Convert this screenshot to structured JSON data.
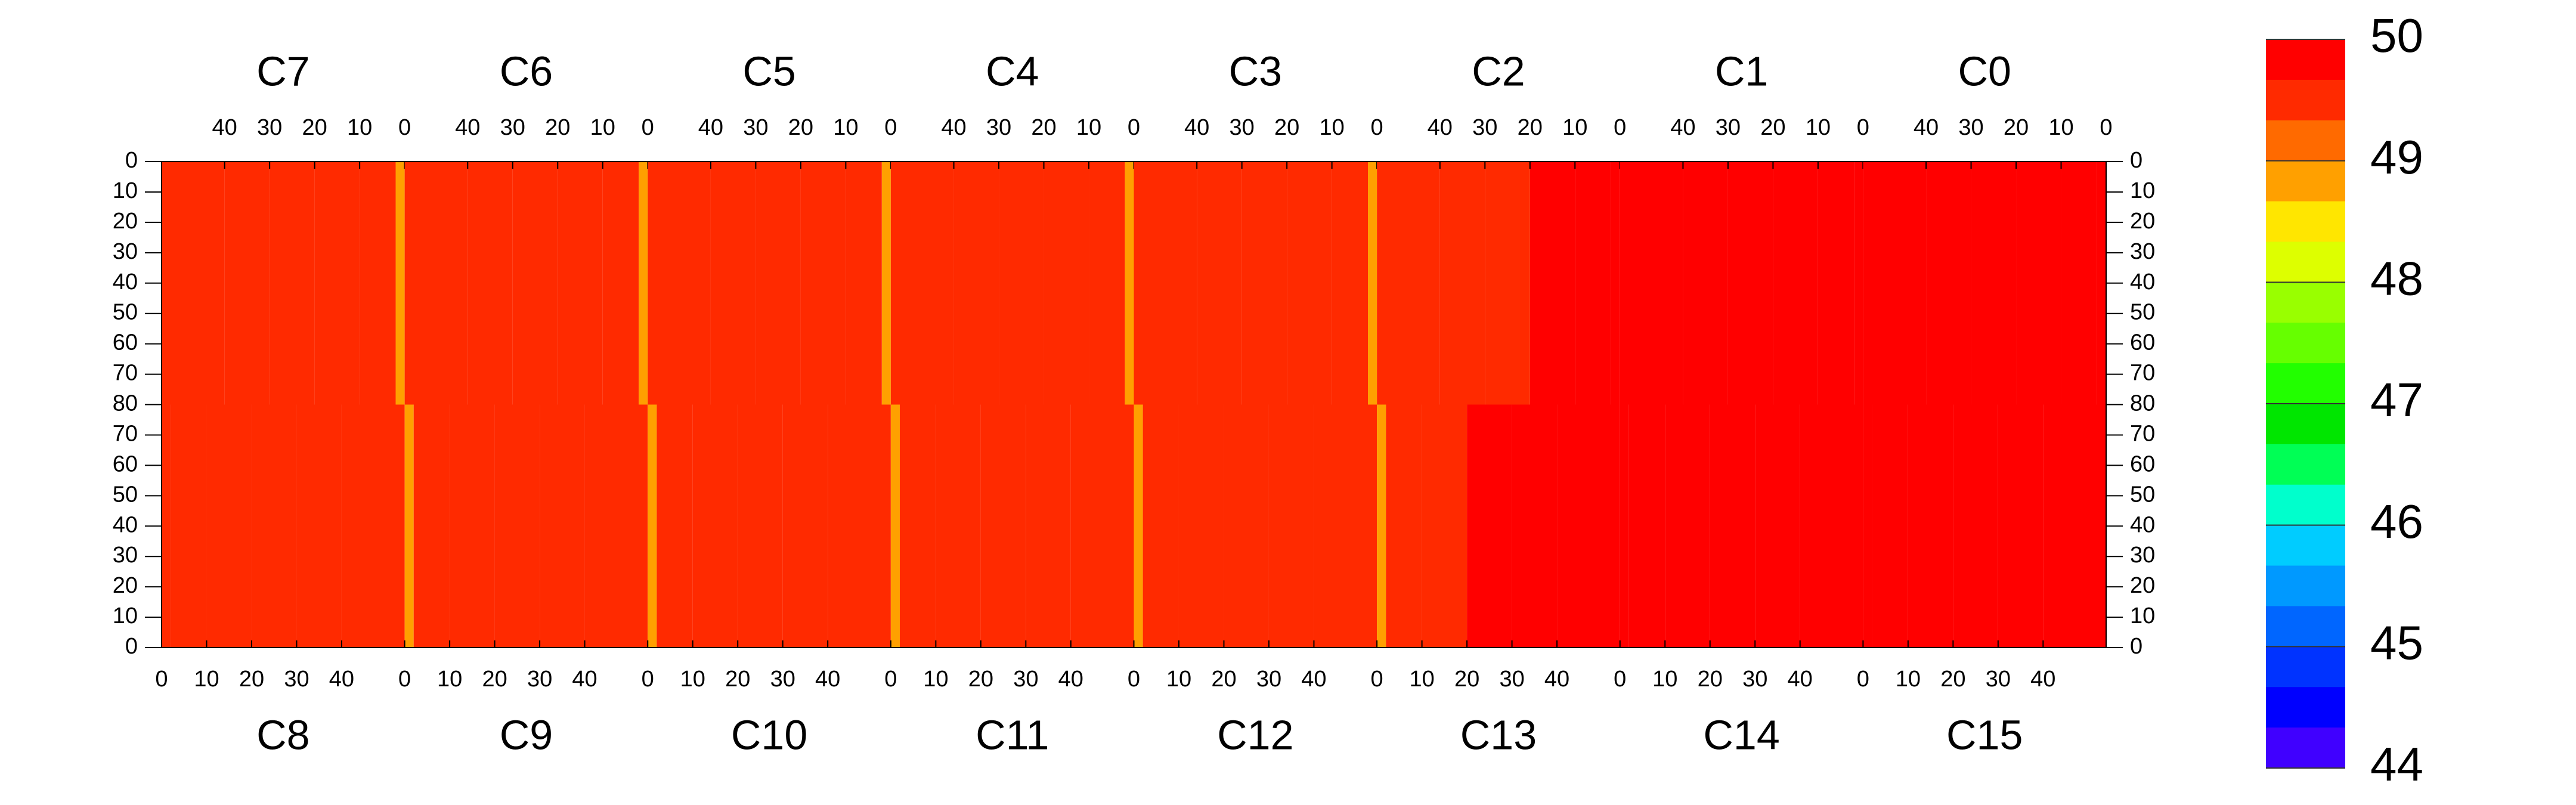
{
  "chart_data": {
    "type": "heatmap",
    "chips": [
      {
        "name": "C7",
        "row": "top",
        "values": [
          48.9,
          49.65,
          49.65,
          49.65,
          49.65,
          49.65
        ]
      },
      {
        "name": "C6",
        "row": "top",
        "values": [
          48.9,
          49.65,
          49.65,
          49.65,
          49.65,
          49.65
        ]
      },
      {
        "name": "C5",
        "row": "top",
        "values": [
          48.9,
          49.65,
          49.65,
          49.65,
          49.65,
          49.65
        ]
      },
      {
        "name": "C4",
        "row": "top",
        "values": [
          48.9,
          49.65,
          49.65,
          49.65,
          49.65,
          49.65
        ]
      },
      {
        "name": "C3",
        "row": "top",
        "values": [
          48.9,
          49.65,
          49.65,
          49.65,
          49.65,
          49.65
        ]
      },
      {
        "name": "C2",
        "row": "top",
        "values": [
          49.8,
          49.8,
          49.8,
          49.65,
          49.65,
          49.65
        ]
      },
      {
        "name": "C1",
        "row": "top",
        "values": [
          49.8,
          49.8,
          49.8,
          49.8,
          49.8,
          49.8
        ]
      },
      {
        "name": "C0",
        "row": "top",
        "values": [
          49.8,
          49.8,
          49.8,
          49.8,
          49.8,
          49.8
        ]
      },
      {
        "name": "C8",
        "row": "bottom",
        "values": [
          49.65,
          49.65,
          49.65,
          49.65,
          49.65,
          49.65
        ]
      },
      {
        "name": "C9",
        "row": "bottom",
        "values": [
          48.9,
          49.65,
          49.65,
          49.65,
          49.65,
          49.65
        ]
      },
      {
        "name": "C10",
        "row": "bottom",
        "values": [
          48.9,
          49.65,
          49.65,
          49.65,
          49.65,
          49.65
        ]
      },
      {
        "name": "C11",
        "row": "bottom",
        "values": [
          48.9,
          49.65,
          49.65,
          49.65,
          49.65,
          49.65
        ]
      },
      {
        "name": "C12",
        "row": "bottom",
        "values": [
          48.9,
          49.65,
          49.65,
          49.65,
          49.65,
          49.65
        ]
      },
      {
        "name": "C13",
        "row": "bottom",
        "values": [
          48.9,
          49.65,
          49.65,
          49.8,
          49.8,
          49.8
        ]
      },
      {
        "name": "C14",
        "row": "bottom",
        "values": [
          49.8,
          49.8,
          49.8,
          49.8,
          49.8,
          49.8
        ]
      },
      {
        "name": "C15",
        "row": "bottom",
        "values": [
          49.8,
          49.8,
          49.8,
          49.8,
          49.8,
          49.8
        ]
      }
    ],
    "column_bands": [
      0,
      2,
      10,
      20,
      30,
      40,
      54
    ],
    "xlim": [
      0,
      54
    ],
    "xticks": [
      0,
      10,
      20,
      30,
      40
    ],
    "ylim": [
      0,
      160
    ],
    "yticks": [
      0,
      10,
      20,
      30,
      40,
      50,
      60,
      70,
      80,
      {
        "value": 90,
        "label": "70"
      },
      {
        "value": 100,
        "label": "60"
      },
      {
        "value": 110,
        "label": "50"
      },
      {
        "value": 120,
        "label": "40"
      },
      {
        "value": 130,
        "label": "30"
      },
      {
        "value": 140,
        "label": "20"
      },
      {
        "value": 150,
        "label": "10"
      },
      {
        "value": 160,
        "label": "0"
      }
    ],
    "colorbar": {
      "lim": [
        44,
        50
      ],
      "ticks": [
        44,
        45,
        46,
        47,
        48,
        49,
        50
      ],
      "colors": [
        "#ff0000",
        "#ff2a00",
        "#ff6a00",
        "#ffa000",
        "#ffe600",
        "#ddff00",
        "#99ff00",
        "#66ff00",
        "#22ff00",
        "#00e600",
        "#00ff55",
        "#00ffcc",
        "#00ccff",
        "#0099ff",
        "#0066ff",
        "#0033ff",
        "#0000ff",
        "#4000ff"
      ]
    }
  }
}
